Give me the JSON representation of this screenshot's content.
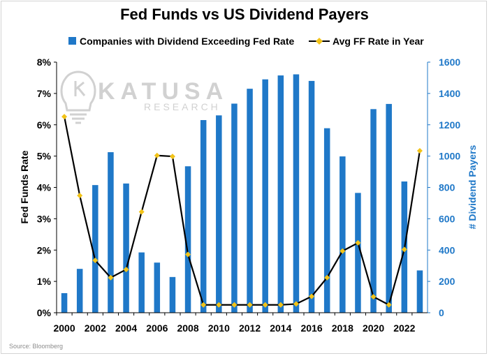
{
  "chart_data": {
    "type": "bar+line",
    "title": "Fed Funds vs US Dividend Payers",
    "x": [
      2000,
      2001,
      2002,
      2003,
      2004,
      2005,
      2006,
      2007,
      2008,
      2009,
      2010,
      2011,
      2012,
      2013,
      2014,
      2015,
      2016,
      2017,
      2018,
      2019,
      2020,
      2021,
      2022,
      2023
    ],
    "x_tick_labels": [
      "2000",
      "2002",
      "2004",
      "2006",
      "2008",
      "2010",
      "2012",
      "2014",
      "2016",
      "2018",
      "2020",
      "2022"
    ],
    "series": [
      {
        "name": "Companies with Dividend Exceeding Fed Rate",
        "type": "bar",
        "axis": "right",
        "color": "#1f78c8",
        "values": [
          125,
          280,
          815,
          1025,
          825,
          385,
          320,
          228,
          935,
          1230,
          1260,
          1335,
          1430,
          1490,
          1515,
          1522,
          1480,
          1178,
          998,
          765,
          1300,
          1333,
          838,
          270
        ]
      },
      {
        "name": "Avg FF Rate in Year",
        "type": "line",
        "axis": "left",
        "color": "#000000",
        "marker_color": "#f2c318",
        "values": [
          6.26,
          3.74,
          1.67,
          1.12,
          1.38,
          3.22,
          5.02,
          4.99,
          1.86,
          0.25,
          0.25,
          0.25,
          0.25,
          0.25,
          0.25,
          0.28,
          0.52,
          1.12,
          1.97,
          2.23,
          0.51,
          0.25,
          2.02,
          5.17
        ]
      }
    ],
    "ylabel": "Fed Funds Rate",
    "ylabel_right": "# Dividend Payers",
    "ylim": [
      0,
      8
    ],
    "ylim_right": [
      0,
      1600
    ],
    "y_ticks": [
      "0%",
      "1%",
      "2%",
      "3%",
      "4%",
      "5%",
      "6%",
      "7%",
      "8%"
    ],
    "y_ticks_right": [
      "0",
      "200",
      "400",
      "600",
      "800",
      "1000",
      "1200",
      "1400",
      "1600"
    ],
    "legend_position": "top",
    "grid": false
  },
  "watermark": {
    "brand": "KATUSA",
    "sub": "RESEARCH",
    "icon": "lightbulb-icon"
  },
  "source": "Source: Bloomberg"
}
